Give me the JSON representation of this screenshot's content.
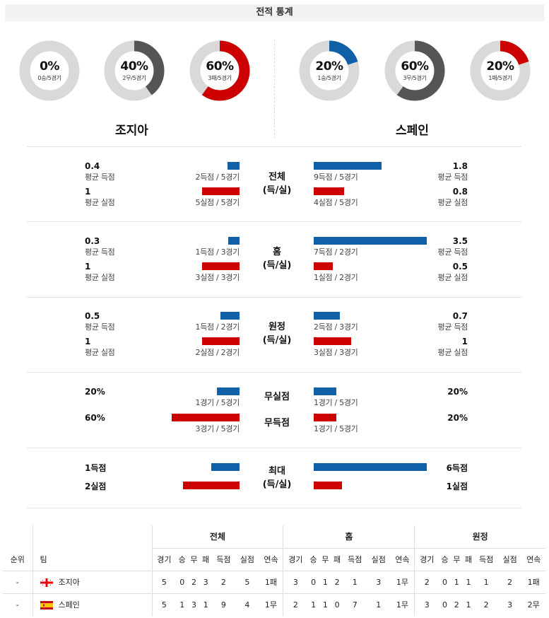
{
  "header": {
    "title": "전적 통계"
  },
  "teams": {
    "home": "조지아",
    "away": "스페인"
  },
  "donuts": [
    {
      "pct": "0%",
      "sub": "0승/5경기",
      "value": 0,
      "color": "#555555"
    },
    {
      "pct": "40%",
      "sub": "2무/5경기",
      "value": 0.4,
      "color": "#555555"
    },
    {
      "pct": "60%",
      "sub": "3패/5경기",
      "value": 0.6,
      "color": "#cc0000"
    },
    {
      "pct": "20%",
      "sub": "1승/5경기",
      "value": 0.2,
      "color": "#1060a8"
    },
    {
      "pct": "60%",
      "sub": "3무/5경기",
      "value": 0.6,
      "color": "#555555"
    },
    {
      "pct": "20%",
      "sub": "1패/5경기",
      "value": 0.2,
      "color": "#cc0000"
    }
  ],
  "sections": [
    {
      "label_1": "전체",
      "label_2": "(득/실)",
      "home": {
        "scored_avg": "0.4",
        "scored_label": "평균 득점",
        "scored_cap": "2득점 / 5경기",
        "scored_frac": 0.106,
        "conceded_avg": "1",
        "conceded_label": "평균 실점",
        "conceded_cap": "5실점 / 5경기",
        "conceded_frac": 0.331
      },
      "away": {
        "scored_avg": "1.8",
        "scored_label": "평균 득점",
        "scored_cap": "9득점 / 5경기",
        "scored_frac": 0.6,
        "conceded_avg": "0.8",
        "conceded_label": "평균 실점",
        "conceded_cap": "4실점 / 5경기",
        "conceded_frac": 0.269
      }
    },
    {
      "label_1": "홈",
      "label_2": "(득/실)",
      "home": {
        "scored_avg": "0.3",
        "scored_label": "평균 득점",
        "scored_cap": "1득점 / 3경기",
        "scored_frac": 0.1,
        "conceded_avg": "1",
        "conceded_label": "평균 실점",
        "conceded_cap": "3실점 / 3경기",
        "conceded_frac": 0.331
      },
      "away": {
        "scored_avg": "3.5",
        "scored_label": "평균 득점",
        "scored_cap": "7득점 / 2경기",
        "scored_frac": 1.0,
        "conceded_avg": "0.5",
        "conceded_label": "평균 실점",
        "conceded_cap": "1실점 / 2경기",
        "conceded_frac": 0.169
      }
    },
    {
      "label_1": "원정",
      "label_2": "(득/실)",
      "home": {
        "scored_avg": "0.5",
        "scored_label": "평균 득점",
        "scored_cap": "1득점 / 2경기",
        "scored_frac": 0.169,
        "conceded_avg": "1",
        "conceded_label": "평균 실점",
        "conceded_cap": "2실점 / 2경기",
        "conceded_frac": 0.331
      },
      "away": {
        "scored_avg": "0.7",
        "scored_label": "평균 득점",
        "scored_cap": "2득점 / 3경기",
        "scored_frac": 0.231,
        "conceded_avg": "1",
        "conceded_label": "평균 실점",
        "conceded_cap": "3실점 / 3경기",
        "conceded_frac": 0.331
      }
    }
  ],
  "clean": {
    "label_a": "무실점",
    "label_b": "무득점",
    "home": {
      "clean_pct": "20%",
      "clean_cap": "1경기 / 5경기",
      "clean_frac": 0.2,
      "fail_pct": "60%",
      "fail_cap": "3경기 / 5경기",
      "fail_frac": 0.6
    },
    "away": {
      "clean_pct": "20%",
      "clean_cap": "1경기 / 5경기",
      "clean_frac": 0.2,
      "fail_pct": "20%",
      "fail_cap": "1경기 / 5경기",
      "fail_frac": 0.2
    }
  },
  "max": {
    "label_1": "최대",
    "label_2": "(득/실)",
    "home": {
      "scored": "1득점",
      "scored_frac": 0.25,
      "conceded": "2실점",
      "conceded_frac": 0.5
    },
    "away": {
      "scored": "6득점",
      "scored_frac": 1.0,
      "conceded": "1실점",
      "conceded_frac": 0.25
    }
  },
  "standings": {
    "groups": [
      "전체",
      "홈",
      "원정"
    ],
    "rank_header": "순위",
    "team_header": "팀",
    "columns": [
      "경기",
      "승",
      "무",
      "패",
      "득점",
      "실점",
      "연속"
    ],
    "rows": [
      {
        "rank": "-",
        "team": "조지아",
        "flag": "georgia",
        "total": [
          "5",
          "0",
          "2",
          "3",
          "2",
          "5",
          "1패"
        ],
        "home": [
          "3",
          "0",
          "1",
          "2",
          "1",
          "3",
          "1무"
        ],
        "away": [
          "2",
          "0",
          "1",
          "1",
          "1",
          "2",
          "1패"
        ]
      },
      {
        "rank": "-",
        "team": "스페인",
        "flag": "spain",
        "total": [
          "5",
          "1",
          "3",
          "1",
          "9",
          "4",
          "1무"
        ],
        "home": [
          "2",
          "1",
          "1",
          "0",
          "7",
          "1",
          "1무"
        ],
        "away": [
          "3",
          "0",
          "2",
          "1",
          "2",
          "3",
          "2무"
        ]
      }
    ]
  }
}
